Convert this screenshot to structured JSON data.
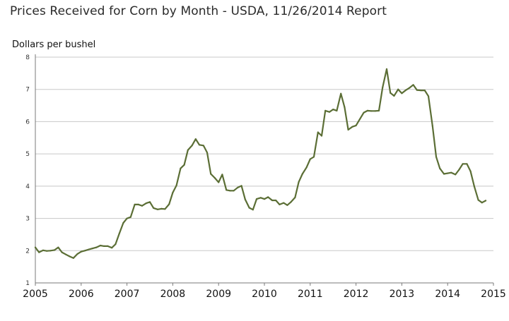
{
  "chart_data": {
    "type": "line",
    "title": "Prices Received for Corn by Month - USDA, 11/26/2014 Report",
    "xlabel": "",
    "ylabel": "Dollars per bushel",
    "xlim": [
      2005,
      2015
    ],
    "ylim": [
      1,
      8
    ],
    "y_ticks": [
      "1",
      "2",
      "3",
      "4",
      "5",
      "6",
      "7",
      "8"
    ],
    "x_ticks": [
      "2005",
      "2006",
      "2007",
      "2008",
      "2009",
      "2010",
      "2011",
      "2012",
      "2013",
      "2014",
      "2015"
    ],
    "grid": "horizontal",
    "line_color": "#5b6e35",
    "series": [
      {
        "x": [
          2005.0,
          2005.08,
          2005.17,
          2005.25,
          2005.33,
          2005.42,
          2005.5,
          2005.58,
          2005.67,
          2005.75,
          2005.83,
          2005.92,
          2006.0,
          2006.08,
          2006.17,
          2006.25,
          2006.33,
          2006.42,
          2006.5,
          2006.58,
          2006.67,
          2006.75,
          2006.83,
          2006.92,
          2007.0,
          2007.08,
          2007.17,
          2007.25,
          2007.33,
          2007.42,
          2007.5,
          2007.58,
          2007.67,
          2007.75,
          2007.83,
          2007.92,
          2008.0,
          2008.08,
          2008.17,
          2008.25,
          2008.33,
          2008.42,
          2008.5,
          2008.58,
          2008.67,
          2008.75,
          2008.83,
          2008.92,
          2009.0,
          2009.08,
          2009.17,
          2009.25,
          2009.33,
          2009.42,
          2009.5,
          2009.58,
          2009.67,
          2009.75,
          2009.83,
          2009.92,
          2010.0,
          2010.08,
          2010.17,
          2010.25,
          2010.33,
          2010.42,
          2010.5,
          2010.58,
          2010.67,
          2010.75,
          2010.83,
          2010.92,
          2011.0,
          2011.08,
          2011.17,
          2011.25,
          2011.33,
          2011.42,
          2011.5,
          2011.58,
          2011.67,
          2011.75,
          2011.83,
          2011.92,
          2012.0,
          2012.08,
          2012.17,
          2012.25,
          2012.33,
          2012.42,
          2012.5,
          2012.58,
          2012.67,
          2012.75,
          2012.83,
          2012.92,
          2013.0,
          2013.08,
          2013.17,
          2013.25,
          2013.33,
          2013.42,
          2013.5,
          2013.58,
          2013.67,
          2013.75,
          2013.83,
          2013.92,
          2014.0,
          2014.08,
          2014.17,
          2014.25,
          2014.33,
          2014.42,
          2014.5,
          2014.58,
          2014.67,
          2014.75,
          2014.83
        ],
        "y": [
          2.1,
          1.95,
          2.01,
          1.99,
          2.0,
          2.02,
          2.1,
          1.95,
          1.88,
          1.82,
          1.77,
          1.9,
          1.97,
          2.0,
          2.04,
          2.07,
          2.1,
          2.16,
          2.14,
          2.14,
          2.09,
          2.2,
          2.52,
          2.86,
          3.0,
          3.04,
          3.43,
          3.43,
          3.39,
          3.47,
          3.51,
          3.32,
          3.28,
          3.3,
          3.29,
          3.44,
          3.8,
          4.02,
          4.55,
          4.66,
          5.12,
          5.26,
          5.46,
          5.28,
          5.26,
          5.04,
          4.38,
          4.25,
          4.12,
          4.36,
          3.88,
          3.86,
          3.86,
          3.96,
          4.01,
          3.59,
          3.33,
          3.27,
          3.6,
          3.64,
          3.6,
          3.66,
          3.56,
          3.56,
          3.43,
          3.48,
          3.41,
          3.51,
          3.65,
          4.13,
          4.38,
          4.58,
          4.84,
          4.91,
          5.67,
          5.56,
          6.34,
          6.3,
          6.38,
          6.34,
          6.87,
          6.45,
          5.75,
          5.84,
          5.88,
          6.07,
          6.28,
          6.34,
          6.33,
          6.33,
          6.34,
          7.06,
          7.63,
          6.89,
          6.8,
          7.0,
          6.88,
          6.97,
          7.05,
          7.14,
          6.98,
          6.97,
          6.97,
          6.79,
          5.87,
          4.91,
          4.55,
          4.38,
          4.4,
          4.42,
          4.36,
          4.51,
          4.69,
          4.69,
          4.46,
          4.0,
          3.57,
          3.49,
          3.55
        ]
      }
    ]
  }
}
